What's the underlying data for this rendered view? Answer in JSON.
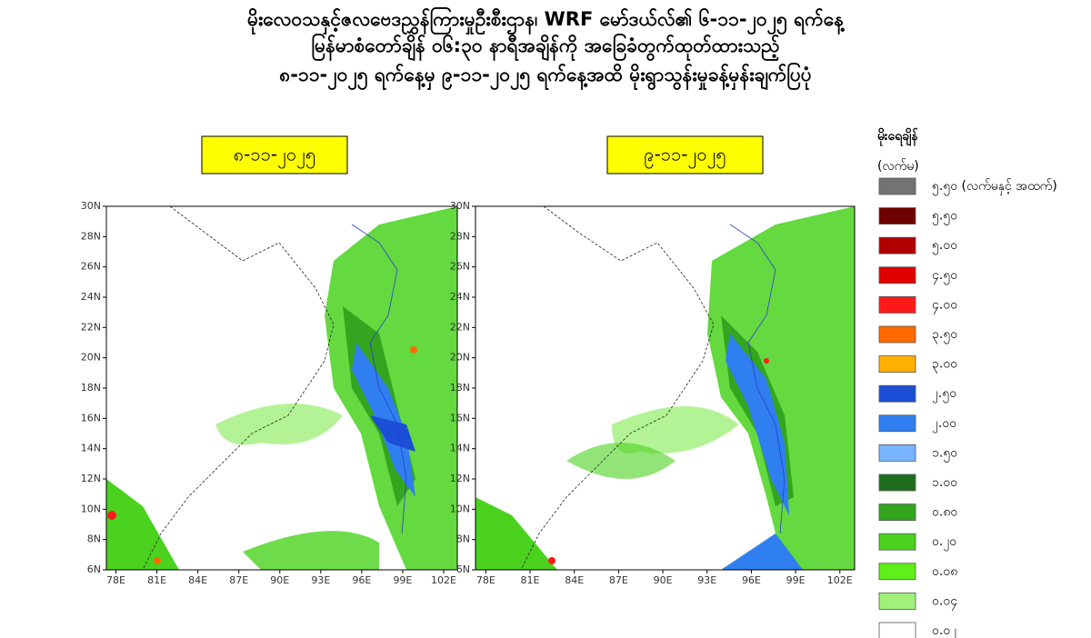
{
  "title_lines": [
    "မိုးလေဝသနှင့်ဇလဗေဒညွှန်ကြားမှုဦးစီးဌာန၊ WRF မော်ဒယ်လ်၏ ၆-၁၁-၂၀၂၅ ရက်နေ့",
    "မြန်မာစံတော်ချိန် ၀၆:၃၀ နာရီအချိန်ကို အခြေခံတွက်ထုတ်ထားသည့်",
    "၈-၁၁-၂၀၂၅ ရက်နေ့မှ ၉-၁၁-၂၀၂၅ ရက်နေ့အထိ မိုးရွာသွန်းမှုခန့်မှန်းချက်ပြပုံ"
  ],
  "map": {
    "xlim": [
      77.3,
      103
    ],
    "ylim": [
      6,
      30
    ],
    "xticks": [
      {
        "value": 78,
        "label": "78E"
      },
      {
        "value": 81,
        "label": "81E"
      },
      {
        "value": 84,
        "label": "84E"
      },
      {
        "value": 87,
        "label": "87E"
      },
      {
        "value": 90,
        "label": "90E"
      },
      {
        "value": 93,
        "label": "93E"
      },
      {
        "value": 96,
        "label": "96E"
      },
      {
        "value": 99,
        "label": "99E"
      },
      {
        "value": 102,
        "label": "102E"
      }
    ],
    "yticks": [
      {
        "value": 30,
        "label": "30N"
      },
      {
        "value": 28,
        "label": "28N"
      },
      {
        "value": 26,
        "label": "26N"
      },
      {
        "value": 24,
        "label": "24N"
      },
      {
        "value": 22,
        "label": "22N"
      },
      {
        "value": 20,
        "label": "20N"
      },
      {
        "value": 18,
        "label": "18N"
      },
      {
        "value": 16,
        "label": "16N"
      },
      {
        "value": 14,
        "label": "14N"
      },
      {
        "value": 12,
        "label": "12N"
      },
      {
        "value": 10,
        "label": "10N"
      },
      {
        "value": 8,
        "label": "8N"
      },
      {
        "value": 6,
        "label": "6N"
      }
    ]
  },
  "panels": [
    {
      "date": "၈-၁၁-၂၀၂၅"
    },
    {
      "date": "၉-၁၁-၂၀၂၅"
    }
  ],
  "legend": {
    "title": "မိုးရေချိန်",
    "unit": "(လက်မ)",
    "items": [
      {
        "label": "၅.၅၀ (လက်မနှင့် အထက်)",
        "color": "#737373"
      },
      {
        "label": "၅.၅၀",
        "color": "#6e0000"
      },
      {
        "label": "၅.၀၀",
        "color": "#b00000"
      },
      {
        "label": "၄.၅၀",
        "color": "#e00000"
      },
      {
        "label": "၄.၀၀",
        "color": "#ff1a1a"
      },
      {
        "label": "၃.၅၀",
        "color": "#ff6a00"
      },
      {
        "label": "၃.၀၀",
        "color": "#ffb000"
      },
      {
        "label": "၂.၅၀",
        "color": "#1a4fd6"
      },
      {
        "label": "၂.၀၀",
        "color": "#2f7ff0"
      },
      {
        "label": "၁.၅၀",
        "color": "#78b4ff"
      },
      {
        "label": "၁.၀၀",
        "color": "#1e6e1e"
      },
      {
        "label": "၀.၈၀",
        "color": "#33a51e"
      },
      {
        "label": "၀.၂၀",
        "color": "#4ad21e"
      },
      {
        "label": "၀.၀၈",
        "color": "#5ef018"
      },
      {
        "label": "၀.၀၄",
        "color": "#a0f07a"
      },
      {
        "label": "၀.၀၂",
        "color": "#ffffff"
      }
    ]
  }
}
